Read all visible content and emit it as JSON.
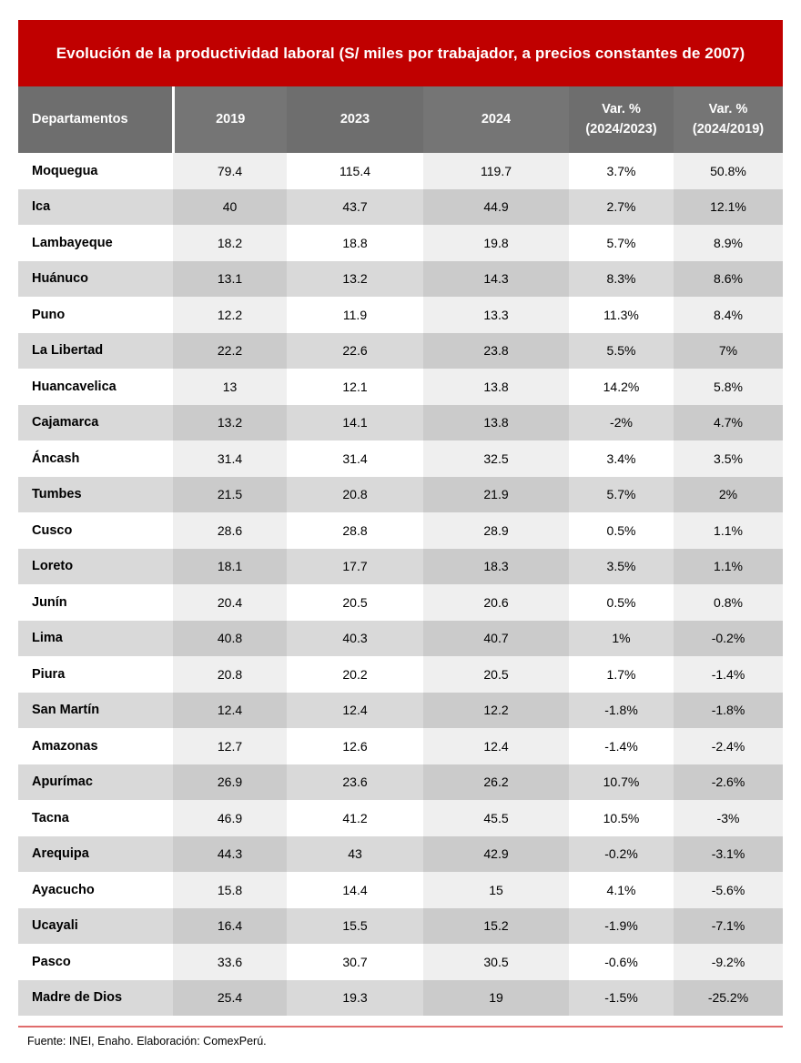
{
  "colors": {
    "accent": "#C00000",
    "header_bg": "#6E6E6E",
    "header_bg_tint": "#757575",
    "row_white": "#FFFFFF",
    "row_white_tint": "#EFEFEF",
    "row_gray": "#D9D9D9",
    "row_gray_tint": "#CBCBCB",
    "rule_red": "#E06C6C"
  },
  "chart_data": {
    "type": "table",
    "title": "Evolución de la productividad laboral (S/ miles por trabajador, a precios constantes de 2007)",
    "columns": [
      "Departamentos",
      "2019",
      "2023",
      "2024",
      "Var. %\n(2024/2023)",
      "Var. %\n(2024/2019)"
    ],
    "rows": [
      [
        "Moquegua",
        "79.4",
        "115.4",
        "119.7",
        "3.7%",
        "50.8%"
      ],
      [
        "Ica",
        "40",
        "43.7",
        "44.9",
        "2.7%",
        "12.1%"
      ],
      [
        "Lambayeque",
        "18.2",
        "18.8",
        "19.8",
        "5.7%",
        "8.9%"
      ],
      [
        "Huánuco",
        "13.1",
        "13.2",
        "14.3",
        "8.3%",
        "8.6%"
      ],
      [
        "Puno",
        "12.2",
        "11.9",
        "13.3",
        "11.3%",
        "8.4%"
      ],
      [
        "La Libertad",
        "22.2",
        "22.6",
        "23.8",
        "5.5%",
        "7%"
      ],
      [
        "Huancavelica",
        "13",
        "12.1",
        "13.8",
        "14.2%",
        "5.8%"
      ],
      [
        "Cajamarca",
        "13.2",
        "14.1",
        "13.8",
        "-2%",
        "4.7%"
      ],
      [
        "Áncash",
        "31.4",
        "31.4",
        "32.5",
        "3.4%",
        "3.5%"
      ],
      [
        "Tumbes",
        "21.5",
        "20.8",
        "21.9",
        "5.7%",
        "2%"
      ],
      [
        "Cusco",
        "28.6",
        "28.8",
        "28.9",
        "0.5%",
        "1.1%"
      ],
      [
        "Loreto",
        "18.1",
        "17.7",
        "18.3",
        "3.5%",
        "1.1%"
      ],
      [
        "Junín",
        "20.4",
        "20.5",
        "20.6",
        "0.5%",
        "0.8%"
      ],
      [
        "Lima",
        "40.8",
        "40.3",
        "40.7",
        "1%",
        "-0.2%"
      ],
      [
        "Piura",
        "20.8",
        "20.2",
        "20.5",
        "1.7%",
        "-1.4%"
      ],
      [
        "San Martín",
        "12.4",
        "12.4",
        "12.2",
        "-1.8%",
        "-1.8%"
      ],
      [
        "Amazonas",
        "12.7",
        "12.6",
        "12.4",
        "-1.4%",
        "-2.4%"
      ],
      [
        "Apurímac",
        "26.9",
        "23.6",
        "26.2",
        "10.7%",
        "-2.6%"
      ],
      [
        "Tacna",
        "46.9",
        "41.2",
        "45.5",
        "10.5%",
        "-3%"
      ],
      [
        "Arequipa",
        "44.3",
        "43",
        "42.9",
        "-0.2%",
        "-3.1%"
      ],
      [
        "Ayacucho",
        "15.8",
        "14.4",
        "15",
        "4.1%",
        "-5.6%"
      ],
      [
        "Ucayali",
        "16.4",
        "15.5",
        "15.2",
        "-1.9%",
        "-7.1%"
      ],
      [
        "Pasco",
        "33.6",
        "30.7",
        "30.5",
        "-0.6%",
        "-9.2%"
      ],
      [
        "Madre de Dios",
        "25.4",
        "19.3",
        "19",
        "-1.5%",
        "-25.2%"
      ]
    ]
  },
  "footer": {
    "source": "Fuente: INEI, Enaho. Elaboración: ComexPerú."
  }
}
